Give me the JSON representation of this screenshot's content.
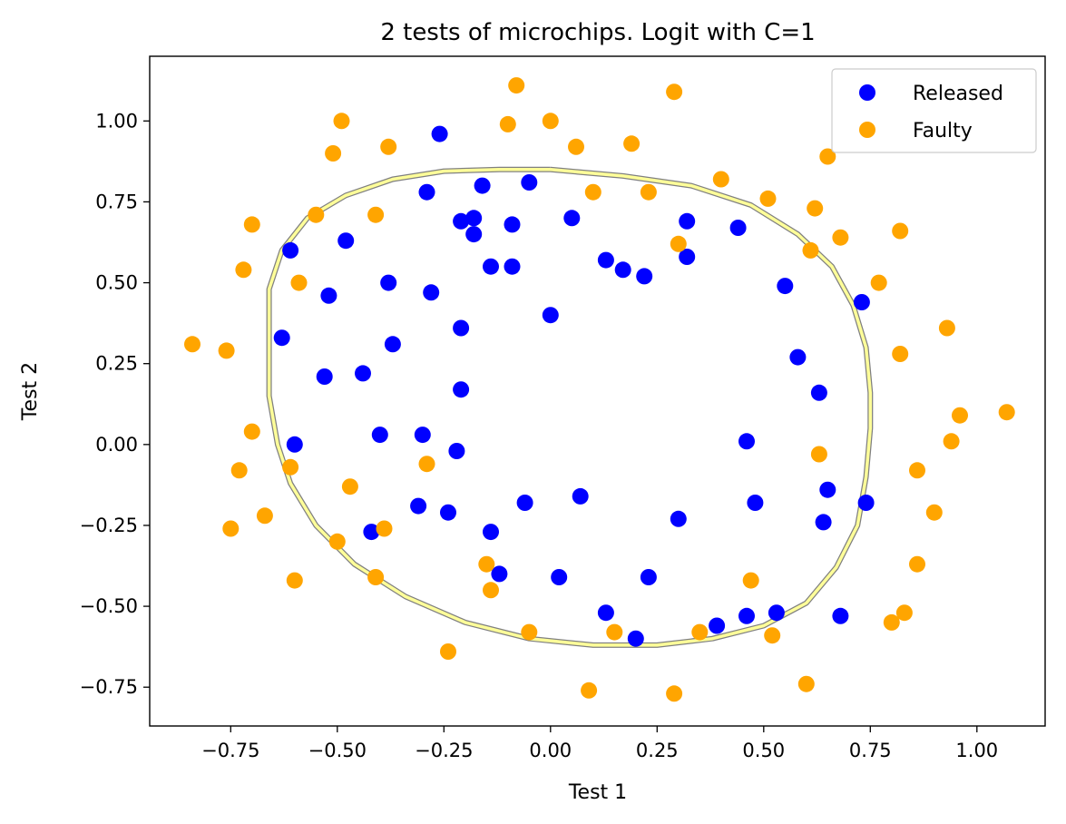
{
  "chart_data": {
    "type": "scatter",
    "title": "2 tests of microchips. Logit with C=1",
    "xlabel": "Test 1",
    "ylabel": "Test 2",
    "xlim": [
      -0.94,
      1.16
    ],
    "ylim": [
      -0.87,
      1.2
    ],
    "xticks": [
      -0.75,
      -0.5,
      -0.25,
      0,
      0.25,
      0.5,
      0.75,
      1
    ],
    "xtick_labels": [
      "−0.75",
      "−0.50",
      "−0.25",
      "0.00",
      "0.25",
      "0.50",
      "0.75",
      "1.00"
    ],
    "yticks": [
      -0.75,
      -0.5,
      -0.25,
      0,
      0.25,
      0.5,
      0.75,
      1
    ],
    "ytick_labels": [
      "−0.75",
      "−0.50",
      "−0.25",
      "0.00",
      "0.25",
      "0.50",
      "0.75",
      "1.00"
    ],
    "grid": false,
    "legend_position": "top-right",
    "series": [
      {
        "name": "Released",
        "color": "#0000ff",
        "points": [
          [
            -0.26,
            0.96
          ],
          [
            -0.29,
            0.78
          ],
          [
            -0.16,
            0.8
          ],
          [
            -0.05,
            0.81
          ],
          [
            -0.21,
            0.69
          ],
          [
            -0.18,
            0.7
          ],
          [
            -0.09,
            0.68
          ],
          [
            -0.18,
            0.65
          ],
          [
            0.05,
            0.7
          ],
          [
            0.32,
            0.69
          ],
          [
            0.44,
            0.67
          ],
          [
            -0.48,
            0.63
          ],
          [
            -0.61,
            0.6
          ],
          [
            0.13,
            0.57
          ],
          [
            0.32,
            0.58
          ],
          [
            -0.14,
            0.55
          ],
          [
            -0.09,
            0.55
          ],
          [
            0.17,
            0.54
          ],
          [
            0.22,
            0.52
          ],
          [
            -0.38,
            0.5
          ],
          [
            0.55,
            0.49
          ],
          [
            -0.28,
            0.47
          ],
          [
            -0.52,
            0.46
          ],
          [
            0.73,
            0.44
          ],
          [
            0.0,
            0.4
          ],
          [
            -0.21,
            0.36
          ],
          [
            -0.63,
            0.33
          ],
          [
            -0.37,
            0.31
          ],
          [
            0.58,
            0.27
          ],
          [
            -0.44,
            0.22
          ],
          [
            -0.53,
            0.21
          ],
          [
            -0.21,
            0.17
          ],
          [
            0.63,
            0.16
          ],
          [
            -0.4,
            0.03
          ],
          [
            -0.3,
            0.03
          ],
          [
            0.46,
            0.01
          ],
          [
            -0.6,
            0.0
          ],
          [
            -0.22,
            -0.02
          ],
          [
            0.65,
            -0.14
          ],
          [
            0.07,
            -0.16
          ],
          [
            -0.06,
            -0.18
          ],
          [
            0.48,
            -0.18
          ],
          [
            0.74,
            -0.18
          ],
          [
            -0.31,
            -0.19
          ],
          [
            -0.24,
            -0.21
          ],
          [
            0.3,
            -0.23
          ],
          [
            0.64,
            -0.24
          ],
          [
            -0.42,
            -0.27
          ],
          [
            -0.14,
            -0.27
          ],
          [
            -0.12,
            -0.4
          ],
          [
            0.02,
            -0.41
          ],
          [
            0.23,
            -0.41
          ],
          [
            0.13,
            -0.52
          ],
          [
            0.53,
            -0.52
          ],
          [
            0.46,
            -0.53
          ],
          [
            0.68,
            -0.53
          ],
          [
            0.39,
            -0.56
          ],
          [
            0.2,
            -0.6
          ]
        ]
      },
      {
        "name": "Faulty",
        "color": "#ffa500",
        "points": [
          [
            -0.08,
            1.11
          ],
          [
            0.29,
            1.09
          ],
          [
            -0.49,
            1.0
          ],
          [
            -0.1,
            0.99
          ],
          [
            0.0,
            1.0
          ],
          [
            -0.51,
            0.9
          ],
          [
            -0.38,
            0.92
          ],
          [
            0.06,
            0.92
          ],
          [
            0.19,
            0.93
          ],
          [
            0.65,
            0.89
          ],
          [
            0.4,
            0.82
          ],
          [
            0.1,
            0.78
          ],
          [
            0.23,
            0.78
          ],
          [
            0.51,
            0.76
          ],
          [
            0.62,
            0.73
          ],
          [
            -0.55,
            0.71
          ],
          [
            -0.41,
            0.71
          ],
          [
            -0.7,
            0.68
          ],
          [
            0.82,
            0.66
          ],
          [
            0.68,
            0.64
          ],
          [
            0.3,
            0.62
          ],
          [
            0.61,
            0.6
          ],
          [
            -0.72,
            0.54
          ],
          [
            -0.59,
            0.5
          ],
          [
            0.77,
            0.5
          ],
          [
            0.93,
            0.36
          ],
          [
            -0.84,
            0.31
          ],
          [
            -0.76,
            0.29
          ],
          [
            0.82,
            0.28
          ],
          [
            1.07,
            0.1
          ],
          [
            0.96,
            0.09
          ],
          [
            -0.7,
            0.04
          ],
          [
            0.94,
            0.01
          ],
          [
            0.63,
            -0.03
          ],
          [
            -0.61,
            -0.07
          ],
          [
            -0.29,
            -0.06
          ],
          [
            -0.73,
            -0.08
          ],
          [
            0.86,
            -0.08
          ],
          [
            -0.47,
            -0.13
          ],
          [
            0.9,
            -0.21
          ],
          [
            -0.67,
            -0.22
          ],
          [
            -0.75,
            -0.26
          ],
          [
            -0.39,
            -0.26
          ],
          [
            -0.5,
            -0.3
          ],
          [
            -0.15,
            -0.37
          ],
          [
            0.86,
            -0.37
          ],
          [
            -0.41,
            -0.41
          ],
          [
            -0.6,
            -0.42
          ],
          [
            0.47,
            -0.42
          ],
          [
            -0.14,
            -0.45
          ],
          [
            0.83,
            -0.52
          ],
          [
            0.8,
            -0.55
          ],
          [
            -0.05,
            -0.58
          ],
          [
            0.15,
            -0.58
          ],
          [
            0.35,
            -0.58
          ],
          [
            0.52,
            -0.59
          ],
          [
            -0.24,
            -0.64
          ],
          [
            0.6,
            -0.74
          ],
          [
            0.09,
            -0.76
          ],
          [
            0.29,
            -0.77
          ]
        ]
      }
    ],
    "decision_boundary": {
      "color": "#ffff99",
      "points": [
        [
          0.0,
          0.85
        ],
        [
          0.17,
          0.83
        ],
        [
          0.33,
          0.8
        ],
        [
          0.47,
          0.74
        ],
        [
          0.58,
          0.65
        ],
        [
          0.66,
          0.55
        ],
        [
          0.71,
          0.43
        ],
        [
          0.74,
          0.3
        ],
        [
          0.75,
          0.16
        ],
        [
          0.75,
          0.05
        ],
        [
          0.74,
          -0.1
        ],
        [
          0.72,
          -0.25
        ],
        [
          0.67,
          -0.38
        ],
        [
          0.6,
          -0.49
        ],
        [
          0.5,
          -0.56
        ],
        [
          0.38,
          -0.6
        ],
        [
          0.25,
          -0.62
        ],
        [
          0.1,
          -0.62
        ],
        [
          -0.05,
          -0.6
        ],
        [
          -0.2,
          -0.55
        ],
        [
          -0.34,
          -0.47
        ],
        [
          -0.46,
          -0.37
        ],
        [
          -0.55,
          -0.25
        ],
        [
          -0.61,
          -0.12
        ],
        [
          -0.64,
          0.0
        ],
        [
          -0.66,
          0.15
        ],
        [
          -0.66,
          0.33
        ],
        [
          -0.66,
          0.48
        ],
        [
          -0.63,
          0.6
        ],
        [
          -0.57,
          0.7
        ],
        [
          -0.48,
          0.77
        ],
        [
          -0.37,
          0.82
        ],
        [
          -0.25,
          0.845
        ],
        [
          -0.12,
          0.85
        ],
        [
          0.0,
          0.85
        ]
      ]
    }
  }
}
